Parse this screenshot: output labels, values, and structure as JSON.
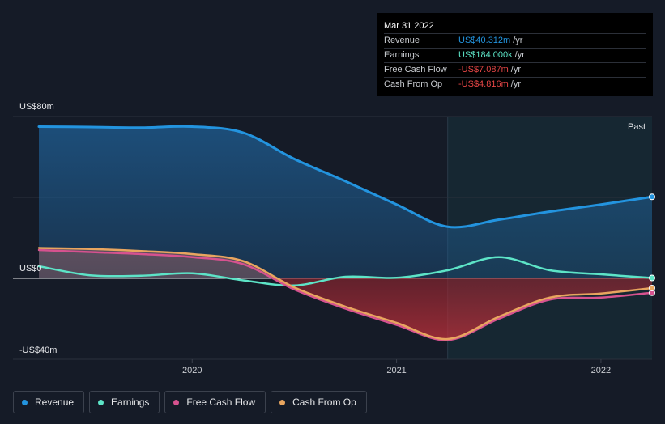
{
  "tooltip": {
    "date": "Mar 31 2022",
    "rows": [
      {
        "label": "Revenue",
        "value": "US$40.312m",
        "unit": "/yr",
        "color": "#2394df"
      },
      {
        "label": "Earnings",
        "value": "US$184.000k",
        "unit": "/yr",
        "color": "#5de4c7"
      },
      {
        "label": "Free Cash Flow",
        "value": "-US$7.087m",
        "unit": "/yr",
        "color": "#e64646"
      },
      {
        "label": "Cash From Op",
        "value": "-US$4.816m",
        "unit": "/yr",
        "color": "#e64646"
      }
    ]
  },
  "past_label": "Past",
  "chart_data": {
    "type": "area",
    "title": "",
    "xlabel": "",
    "ylabel": "",
    "ylim": [
      -40,
      80
    ],
    "y_tick_labels": [
      {
        "value": 80,
        "label": "US$80m"
      },
      {
        "value": 0,
        "label": "US$0"
      },
      {
        "value": -40,
        "label": "-US$40m"
      }
    ],
    "xlim": [
      2019.25,
      2022.25
    ],
    "x_tick_labels": [
      {
        "value": 2020,
        "label": "2020"
      },
      {
        "value": 2021,
        "label": "2021"
      },
      {
        "value": 2022,
        "label": "2022"
      }
    ],
    "past_start": 2021.25,
    "grid": true,
    "legend_position": "bottom-left",
    "series": [
      {
        "name": "Revenue",
        "color": "#2394df",
        "points": [
          [
            2019.25,
            75
          ],
          [
            2019.5,
            74.8
          ],
          [
            2019.75,
            74.5
          ],
          [
            2020,
            75
          ],
          [
            2020.25,
            72
          ],
          [
            2020.5,
            59
          ],
          [
            2020.75,
            48
          ],
          [
            2021,
            36.5
          ],
          [
            2021.25,
            25.5
          ],
          [
            2021.5,
            29
          ],
          [
            2021.75,
            33
          ],
          [
            2022,
            36.5
          ],
          [
            2022.25,
            40.3
          ]
        ]
      },
      {
        "name": "Earnings",
        "color": "#5de4c7",
        "points": [
          [
            2019.25,
            6
          ],
          [
            2019.5,
            1.5
          ],
          [
            2019.75,
            1.3
          ],
          [
            2020,
            2.5
          ],
          [
            2020.25,
            -1
          ],
          [
            2020.5,
            -3.5
          ],
          [
            2020.75,
            0.8
          ],
          [
            2021,
            0.3
          ],
          [
            2021.25,
            4
          ],
          [
            2021.5,
            10.5
          ],
          [
            2021.75,
            4
          ],
          [
            2022,
            2
          ],
          [
            2022.25,
            0.2
          ]
        ]
      },
      {
        "name": "Free Cash Flow",
        "color": "#d6528f",
        "points": [
          [
            2019.25,
            14
          ],
          [
            2019.5,
            13
          ],
          [
            2019.75,
            12
          ],
          [
            2020,
            10.5
          ],
          [
            2020.25,
            7
          ],
          [
            2020.5,
            -5.5
          ],
          [
            2020.75,
            -15
          ],
          [
            2021,
            -23
          ],
          [
            2021.25,
            -30.5
          ],
          [
            2021.5,
            -20
          ],
          [
            2021.75,
            -10.5
          ],
          [
            2022,
            -9.5
          ],
          [
            2022.25,
            -7.1
          ]
        ]
      },
      {
        "name": "Cash From Op",
        "color": "#e8a55f",
        "points": [
          [
            2019.25,
            15
          ],
          [
            2019.5,
            14.5
          ],
          [
            2019.75,
            13.5
          ],
          [
            2020,
            12
          ],
          [
            2020.25,
            8.5
          ],
          [
            2020.5,
            -4.5
          ],
          [
            2020.75,
            -14
          ],
          [
            2021,
            -22
          ],
          [
            2021.25,
            -30
          ],
          [
            2021.5,
            -19
          ],
          [
            2021.75,
            -9.5
          ],
          [
            2022,
            -7.5
          ],
          [
            2022.25,
            -4.8
          ]
        ]
      }
    ]
  }
}
